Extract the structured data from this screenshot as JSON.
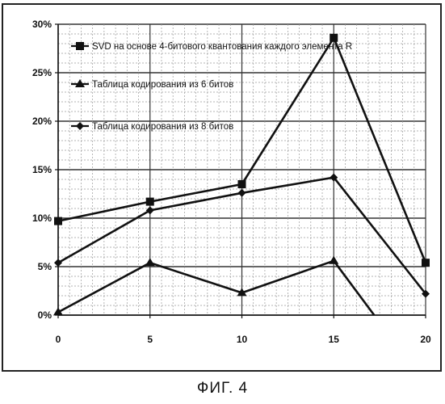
{
  "figure": {
    "caption": "ФИГ. 4"
  },
  "chart_data": {
    "type": "line",
    "x": [
      0,
      5,
      10,
      15,
      20
    ],
    "xlim": [
      0,
      20
    ],
    "ylim": [
      0,
      30
    ],
    "x_ticks": [
      "0",
      "5",
      "10",
      "15",
      "20"
    ],
    "y_ticks": [
      "0%",
      "5%",
      "10%",
      "15%",
      "20%",
      "25%",
      "30%"
    ],
    "grid": true,
    "legend_position": "top-right",
    "series": [
      {
        "name": "SVD на основе 4-битового квантования каждого элемента R",
        "marker": "square",
        "color": "#111111",
        "points": [
          [
            0,
            9.7
          ],
          [
            5,
            11.7
          ],
          [
            10,
            13.5
          ],
          [
            15,
            28.6
          ],
          [
            20,
            5.4
          ]
        ]
      },
      {
        "name": "Таблица кодирования из 6 битов",
        "marker": "triangle",
        "color": "#111111",
        "points": [
          [
            0,
            0.3
          ],
          [
            5,
            5.4
          ],
          [
            10,
            2.3
          ],
          [
            15,
            5.6
          ],
          [
            17.2,
            0
          ]
        ]
      },
      {
        "name": "Таблица кодирования из 8 битов",
        "marker": "diamond",
        "color": "#111111",
        "points": [
          [
            0,
            5.4
          ],
          [
            5,
            10.8
          ],
          [
            10,
            12.6
          ],
          [
            15,
            14.2
          ],
          [
            20,
            2.2
          ]
        ]
      }
    ]
  }
}
